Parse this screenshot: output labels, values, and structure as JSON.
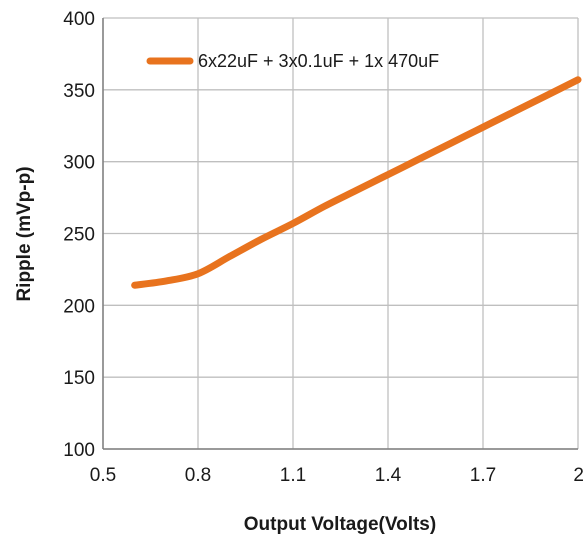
{
  "chart_data": {
    "type": "line",
    "xlabel": "Output Voltage(Volts)",
    "ylabel": "Ripple (mVp-p)",
    "xlim": [
      0.5,
      2.0
    ],
    "ylim": [
      100,
      400
    ],
    "x_ticks": [
      0.5,
      0.8,
      1.1,
      1.4,
      1.7,
      2.0
    ],
    "x_tick_labels": [
      "0.5",
      "0.8",
      "1.1",
      "1.4",
      "1.7",
      "2"
    ],
    "y_ticks": [
      100,
      150,
      200,
      250,
      300,
      350,
      400
    ],
    "y_tick_labels": [
      "100",
      "150",
      "200",
      "250",
      "300",
      "350",
      "400"
    ],
    "grid": true,
    "legend_position": "top",
    "series": [
      {
        "name": "6x22uF + 3x0.1uF + 1x 470uF",
        "color": "#E8731E",
        "x": [
          0.6,
          0.7,
          0.8,
          0.9,
          1.0,
          1.1,
          1.2,
          1.3,
          1.4,
          1.5,
          1.6,
          1.7,
          1.8,
          1.9,
          2.0
        ],
        "y": [
          214,
          217,
          222,
          234,
          246,
          257,
          269,
          280,
          291,
          302,
          313,
          324,
          335,
          346,
          357
        ]
      }
    ]
  }
}
